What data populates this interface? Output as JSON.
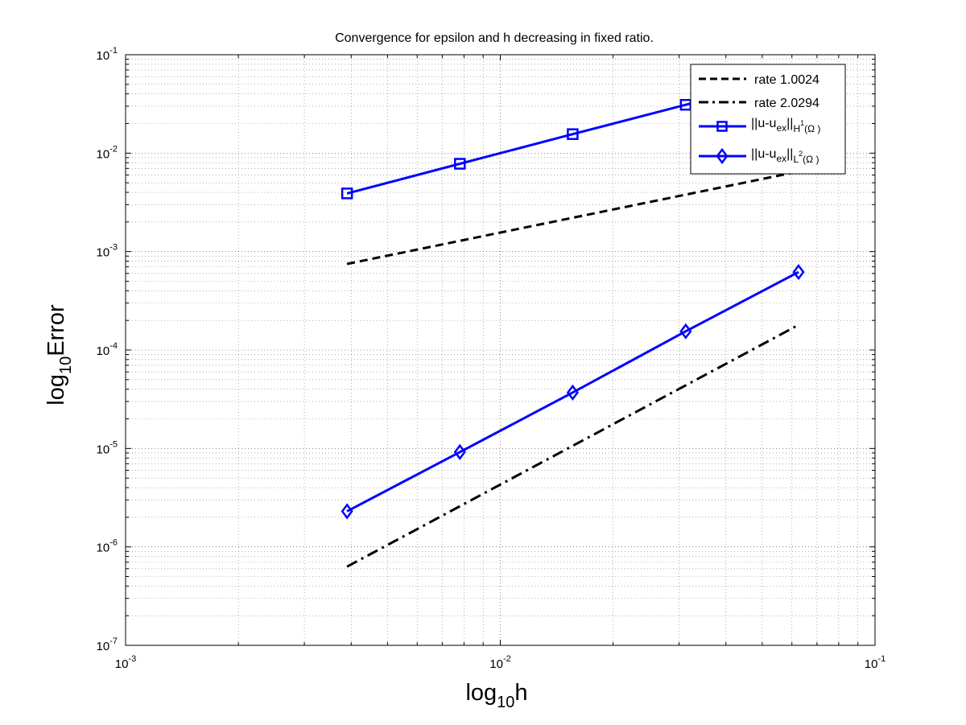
{
  "chart_data": {
    "type": "line",
    "title": "Convergence for epsilon and h decreasing in fixed ratio.",
    "xlabel": {
      "prefix": "log",
      "sub": "10",
      "suffix": "h"
    },
    "ylabel": {
      "prefix": "log",
      "sub": "10",
      "suffix": "Error"
    },
    "x_scale": "log",
    "y_scale": "log",
    "xlim": [
      0.001,
      0.1
    ],
    "ylim": [
      1e-07,
      0.1
    ],
    "x_ticks": [
      {
        "value": 0.001,
        "base": "10",
        "exp": "-3"
      },
      {
        "value": 0.01,
        "base": "10",
        "exp": "-2"
      },
      {
        "value": 0.1,
        "base": "10",
        "exp": "-1"
      }
    ],
    "y_ticks": [
      {
        "value": 1e-07,
        "base": "10",
        "exp": "-7"
      },
      {
        "value": 1e-06,
        "base": "10",
        "exp": "-6"
      },
      {
        "value": 1e-05,
        "base": "10",
        "exp": "-5"
      },
      {
        "value": 0.0001,
        "base": "10",
        "exp": "-4"
      },
      {
        "value": 0.001,
        "base": "10",
        "exp": "-3"
      },
      {
        "value": 0.01,
        "base": "10",
        "exp": "-2"
      },
      {
        "value": 0.1,
        "base": "10",
        "exp": "-1"
      }
    ],
    "grid": true,
    "minor_grid": true,
    "legend_position": "top-right",
    "series": [
      {
        "name": "rate 1.0024",
        "color": "#000000",
        "style": "dashed",
        "marker": "none",
        "x": [
          0.0039,
          0.0625
        ],
        "y": [
          0.00075,
          0.0065
        ]
      },
      {
        "name": "rate 2.0294",
        "color": "#000000",
        "style": "dashdot",
        "marker": "none",
        "x": [
          0.0039,
          0.0625
        ],
        "y": [
          6.3e-07,
          0.00018
        ]
      },
      {
        "name": "||u-u_ex||_H1(Ω)",
        "legend": {
          "norm": "||u-u",
          "sub": "ex",
          "norm2": "||",
          "space": "H",
          "sup": "1",
          "domain": "(Ω )"
        },
        "color": "#0000ff",
        "style": "solid",
        "marker": "square",
        "x": [
          0.0039,
          0.0078,
          0.0156,
          0.03125,
          0.0625
        ],
        "y": [
          0.0039,
          0.0078,
          0.0156,
          0.031,
          0.062
        ]
      },
      {
        "name": "||u-u_ex||_L2(Ω)",
        "legend": {
          "norm": "||u-u",
          "sub": "ex",
          "norm2": "||",
          "space": "L",
          "sup": "2",
          "domain": "(Ω )"
        },
        "color": "#0000ff",
        "style": "solid",
        "marker": "diamond",
        "x": [
          0.0039,
          0.0078,
          0.0156,
          0.03125,
          0.0625
        ],
        "y": [
          2.3e-06,
          9.2e-06,
          3.7e-05,
          0.000155,
          0.00062
        ]
      }
    ]
  }
}
